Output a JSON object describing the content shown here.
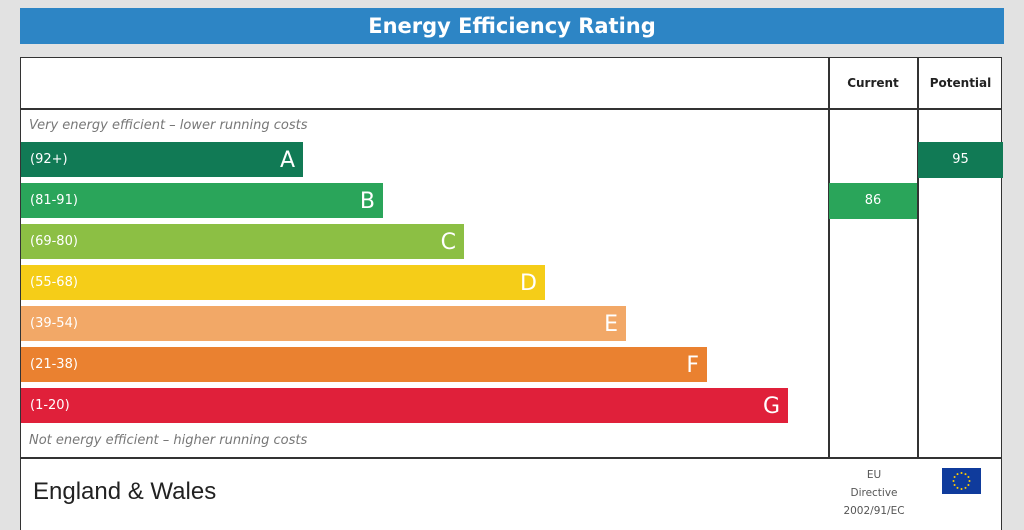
{
  "title": "Energy Efficiency Rating",
  "columns": {
    "current": "Current",
    "potential": "Potential"
  },
  "top_note": "Very energy efficient – lower running costs",
  "bottom_note": "Not energy efficient – higher running costs",
  "bands": [
    {
      "range": "(92+)",
      "letter": "A",
      "color": "#117a55"
    },
    {
      "range": "(81-91)",
      "letter": "B",
      "color": "#2aa55a"
    },
    {
      "range": "(69-80)",
      "letter": "C",
      "color": "#8cbf44"
    },
    {
      "range": "(55-68)",
      "letter": "D",
      "color": "#f5cd18"
    },
    {
      "range": "(39-54)",
      "letter": "E",
      "color": "#f2a867"
    },
    {
      "range": "(21-38)",
      "letter": "F",
      "color": "#ea8130"
    },
    {
      "range": "(1-20)",
      "letter": "G",
      "color": "#e0203a"
    }
  ],
  "current": {
    "value": "86",
    "band": "B"
  },
  "potential": {
    "value": "95",
    "band": "A"
  },
  "footer": {
    "region": "England & Wales",
    "eu_line1": "EU",
    "eu_line2": "Directive",
    "eu_line3": "2002/91/EC",
    "flag_icon": "eu-flag-icon"
  }
}
